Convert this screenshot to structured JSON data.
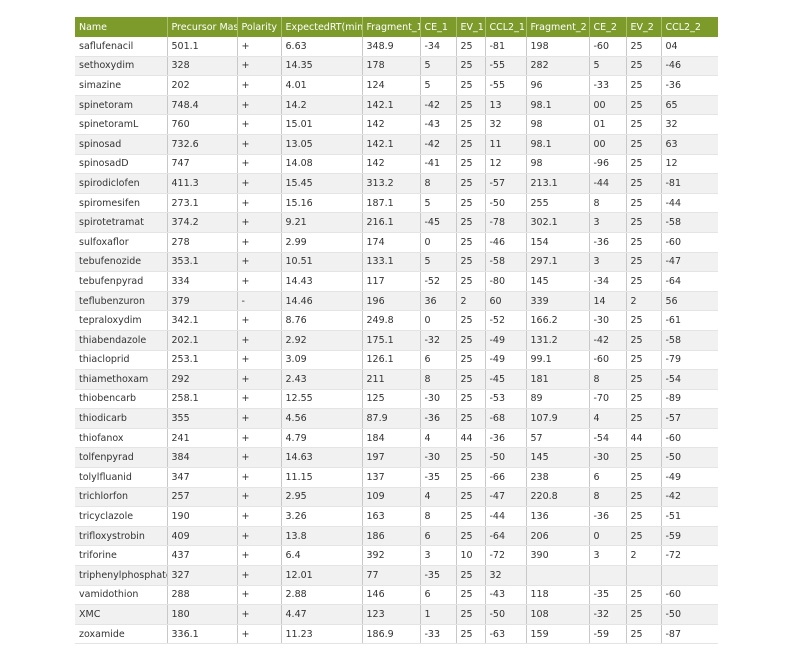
{
  "table": {
    "header": [
      "Name",
      "Precursor Mass",
      "Polarity",
      "ExpectedRT(min)",
      "Fragment_1",
      "CE_1",
      "EV_1",
      "CCL2_1",
      "Fragment_2",
      "CE_2",
      "EV_2",
      "CCL2_2"
    ],
    "rows": [
      [
        "saflufenacil",
        "501.1",
        "+",
        "6.63",
        "348.9",
        "-34",
        "25",
        "-81",
        "198",
        "-60",
        "25",
        "04"
      ],
      [
        "sethoxydim",
        "328",
        "+",
        "14.35",
        "178",
        "5",
        "25",
        "-55",
        "282",
        "5",
        "25",
        "-46"
      ],
      [
        "simazine",
        "202",
        "+",
        "4.01",
        "124",
        "5",
        "25",
        "-55",
        "96",
        "-33",
        "25",
        "-36"
      ],
      [
        "spinetoram",
        "748.4",
        "+",
        "14.2",
        "142.1",
        "-42",
        "25",
        "13",
        "98.1",
        "00",
        "25",
        "65"
      ],
      [
        "spinetoramL",
        "760",
        "+",
        "15.01",
        "142",
        "-43",
        "25",
        "32",
        "98",
        "01",
        "25",
        "32"
      ],
      [
        "spinosad",
        "732.6",
        "+",
        "13.05",
        "142.1",
        "-42",
        "25",
        "11",
        "98.1",
        "00",
        "25",
        "63"
      ],
      [
        "spinosadD",
        "747",
        "+",
        "14.08",
        "142",
        "-41",
        "25",
        "12",
        "98",
        "-96",
        "25",
        "12"
      ],
      [
        "spirodiclofen",
        "411.3",
        "+",
        "15.45",
        "313.2",
        "8",
        "25",
        "-57",
        "213.1",
        "-44",
        "25",
        "-81"
      ],
      [
        "spiromesifen",
        "273.1",
        "+",
        "15.16",
        "187.1",
        "5",
        "25",
        "-50",
        "255",
        "8",
        "25",
        "-44"
      ],
      [
        "spirotetramat",
        "374.2",
        "+",
        "9.21",
        "216.1",
        "-45",
        "25",
        "-78",
        "302.1",
        "3",
        "25",
        "-58"
      ],
      [
        "sulfoxaflor",
        "278",
        "+",
        "2.99",
        "174",
        "0",
        "25",
        "-46",
        "154",
        "-36",
        "25",
        "-60"
      ],
      [
        "tebufenozide",
        "353.1",
        "+",
        "10.51",
        "133.1",
        "5",
        "25",
        "-58",
        "297.1",
        "3",
        "25",
        "-47"
      ],
      [
        "tebufenpyrad",
        "334",
        "+",
        "14.43",
        "117",
        "-52",
        "25",
        "-80",
        "145",
        "-34",
        "25",
        "-64"
      ],
      [
        "teflubenzuron",
        "379",
        "-",
        "14.46",
        "196",
        "36",
        "2",
        "60",
        "339",
        "14",
        "2",
        "56"
      ],
      [
        "tepraloxydim",
        "342.1",
        "+",
        "8.76",
        "249.8",
        "0",
        "25",
        "-52",
        "166.2",
        "-30",
        "25",
        "-61"
      ],
      [
        "thiabendazole",
        "202.1",
        "+",
        "2.92",
        "175.1",
        "-32",
        "25",
        "-49",
        "131.2",
        "-42",
        "25",
        "-58"
      ],
      [
        "thiacloprid",
        "253.1",
        "+",
        "3.09",
        "126.1",
        "6",
        "25",
        "-49",
        "99.1",
        "-60",
        "25",
        "-79"
      ],
      [
        "thiamethoxam",
        "292",
        "+",
        "2.43",
        "211",
        "8",
        "25",
        "-45",
        "181",
        "8",
        "25",
        "-54"
      ],
      [
        "thiobencarb",
        "258.1",
        "+",
        "12.55",
        "125",
        "-30",
        "25",
        "-53",
        "89",
        "-70",
        "25",
        "-89"
      ],
      [
        "thiodicarb",
        "355",
        "+",
        "4.56",
        "87.9",
        "-36",
        "25",
        "-68",
        "107.9",
        "4",
        "25",
        "-57"
      ],
      [
        "thiofanox",
        "241",
        "+",
        "4.79",
        "184",
        "4",
        "44",
        "-36",
        "57",
        "-54",
        "44",
        "-60"
      ],
      [
        "tolfenpyrad",
        "384",
        "+",
        "14.63",
        "197",
        "-30",
        "25",
        "-50",
        "145",
        "-30",
        "25",
        "-50"
      ],
      [
        "tolylfluanid",
        "347",
        "+",
        "11.15",
        "137",
        "-35",
        "25",
        "-66",
        "238",
        "6",
        "25",
        "-49"
      ],
      [
        "trichlorfon",
        "257",
        "+",
        "2.95",
        "109",
        "4",
        "25",
        "-47",
        "220.8",
        "8",
        "25",
        "-42"
      ],
      [
        "tricyclazole",
        "190",
        "+",
        "3.26",
        "163",
        "8",
        "25",
        "-44",
        "136",
        "-36",
        "25",
        "-51"
      ],
      [
        "trifloxystrobin",
        "409",
        "+",
        "13.8",
        "186",
        "6",
        "25",
        "-64",
        "206",
        "0",
        "25",
        "-59"
      ],
      [
        "triforine",
        "437",
        "+",
        "6.4",
        "392",
        "3",
        "10",
        "-72",
        "390",
        "3",
        "2",
        "-72"
      ],
      [
        "triphenylphosphate(I.S.)",
        "327",
        "+",
        "12.01",
        "77",
        "-35",
        "25",
        "32"
      ],
      [
        "vamidothion",
        "288",
        "+",
        "2.88",
        "146",
        "6",
        "25",
        "-43",
        "118",
        "-35",
        "25",
        "-60"
      ],
      [
        "XMC",
        "180",
        "+",
        "4.47",
        "123",
        "1",
        "25",
        "-50",
        "108",
        "-32",
        "25",
        "-50"
      ],
      [
        "zoxamide",
        "336.1",
        "+",
        "11.23",
        "186.9",
        "-33",
        "25",
        "-63",
        "159",
        "-59",
        "25",
        "-87"
      ]
    ]
  }
}
